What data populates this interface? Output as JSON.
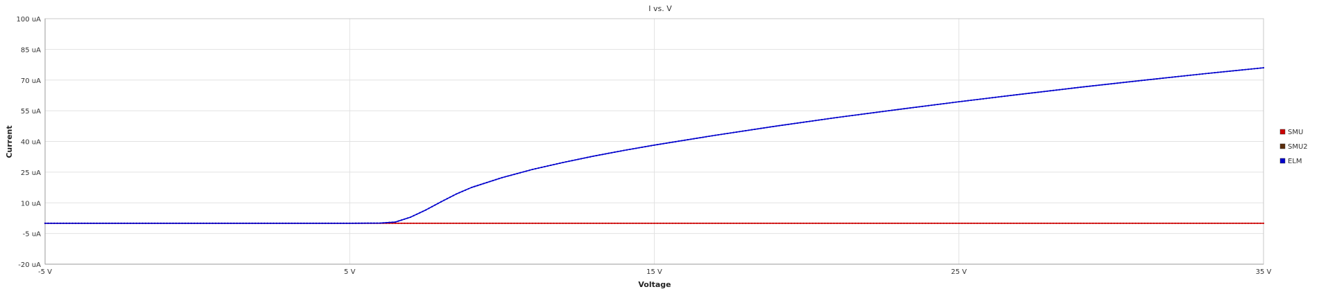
{
  "chart_data": {
    "type": "line",
    "title": "I vs. V",
    "xlabel": "Voltage",
    "ylabel": "Current",
    "xlim": [
      -5,
      35
    ],
    "ylim": [
      -20,
      100
    ],
    "x_ticks": [
      -5,
      5,
      15,
      25,
      35
    ],
    "x_tick_labels": [
      "-5 V",
      "5 V",
      "15 V",
      "25 V",
      "35 V"
    ],
    "y_ticks": [
      -20,
      -5,
      10,
      25,
      40,
      55,
      70,
      85,
      100
    ],
    "y_tick_labels": [
      "-20 uA",
      "-5 uA",
      "10 uA",
      "25 uA",
      "40 uA",
      "55 uA",
      "70 uA",
      "85 uA",
      "100 uA"
    ],
    "grid": true,
    "legend_position": "right",
    "series": [
      {
        "name": "SMU",
        "color": "#cc0000",
        "x": [
          -5,
          0,
          5,
          6,
          6.5,
          7,
          7.5,
          8,
          10,
          15,
          20,
          25,
          30,
          35
        ],
        "y": [
          0,
          0,
          0,
          0,
          0,
          0,
          0,
          0,
          0,
          0,
          0,
          0,
          0,
          0
        ]
      },
      {
        "name": "SMU2",
        "color": "#5a2d0c",
        "x": [],
        "y": []
      },
      {
        "name": "ELM",
        "color": "#0000cc",
        "x": [
          -5,
          0,
          5,
          6,
          6.5,
          7,
          7.5,
          8,
          8.5,
          9,
          10,
          11,
          12,
          13,
          14,
          15,
          17,
          19,
          21,
          23,
          25,
          27,
          29,
          31,
          33,
          35
        ],
        "y": [
          0,
          0,
          0,
          0.1,
          0.6,
          3.0,
          6.5,
          10.5,
          14.3,
          17.5,
          22.3,
          26.3,
          29.7,
          32.8,
          35.6,
          38.2,
          43.0,
          47.5,
          51.7,
          55.6,
          59.4,
          63.0,
          66.5,
          69.8,
          73.0,
          76.0
        ]
      }
    ]
  }
}
